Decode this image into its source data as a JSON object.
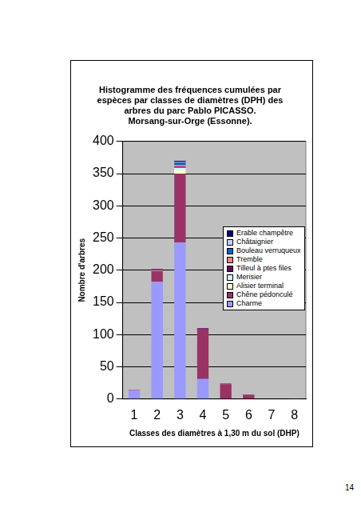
{
  "chart_data": {
    "type": "bar",
    "title": [
      "Histogramme des fréquences cumulées par",
      "espèces par classes de diamètres (DPH) des",
      "arbres du parc Pablo PICASSO.",
      "Morsang-sur-Orge (Essonne)."
    ],
    "x_label": "Classes des diamètres à 1,30 m du sol (DHP)",
    "y_label": "Nombre d'arbres",
    "categories": [
      "1",
      "2",
      "3",
      "4",
      "5",
      "6",
      "7",
      "8"
    ],
    "series": [
      {
        "name": "Charme",
        "color": "#9999ff",
        "values": [
          13,
          182,
          243,
          31,
          0,
          0,
          0,
          0
        ]
      },
      {
        "name": "Chêne pédonculé",
        "color": "#993366",
        "values": [
          1,
          17,
          107,
          77,
          23,
          7,
          0,
          1
        ]
      },
      {
        "name": "Alisier terminal",
        "color": "#ffffcc",
        "values": [
          0,
          1,
          5,
          0,
          0,
          0,
          0,
          0
        ]
      },
      {
        "name": "Merisier",
        "color": "#ccffff",
        "values": [
          0,
          0,
          4,
          0,
          0,
          0,
          0,
          0
        ]
      },
      {
        "name": "Tilleul à ptes files",
        "color": "#660066",
        "values": [
          0,
          2,
          2,
          2,
          1,
          0,
          0,
          0
        ]
      },
      {
        "name": "Tremble",
        "color": "#ff8080",
        "values": [
          0,
          0,
          2,
          0,
          0,
          0,
          0,
          0
        ]
      },
      {
        "name": "Bouleau verruqueux",
        "color": "#0066cc",
        "values": [
          0,
          0,
          4,
          0,
          0,
          0,
          0,
          0
        ]
      },
      {
        "name": "Châtaignier",
        "color": "#ccccff",
        "values": [
          0,
          0,
          1,
          0,
          0,
          0,
          0,
          0
        ]
      },
      {
        "name": "Erable champêtre",
        "color": "#000080",
        "values": [
          0,
          0,
          2,
          0,
          0,
          0,
          0,
          0
        ]
      }
    ],
    "ylim": [
      0,
      400
    ],
    "yticks": [
      0,
      50,
      100,
      150,
      200,
      250,
      300,
      350,
      400
    ],
    "stacked": true,
    "grid": true,
    "legend": "upper right"
  },
  "page_number": 14
}
